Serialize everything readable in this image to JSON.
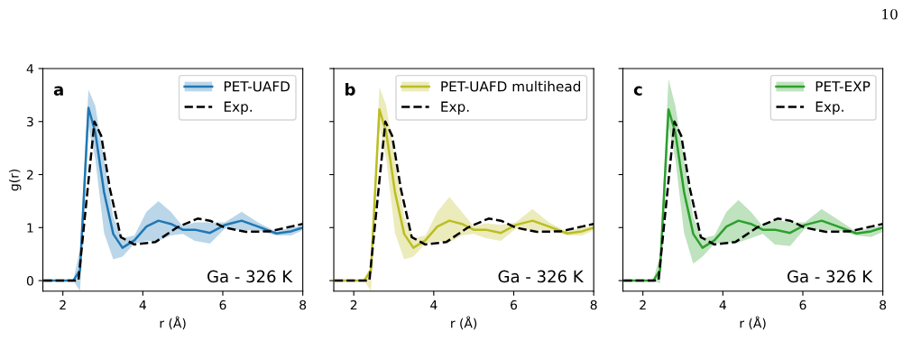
{
  "chart_data": [
    {
      "type": "line",
      "xlabel": "r (Å)",
      "ylabel": "g(r)",
      "xlim": [
        1.5,
        8
      ],
      "ylim": [
        -0.2,
        4
      ],
      "xticks": [
        2,
        4,
        6,
        8
      ],
      "yticks": [
        0,
        1,
        2,
        3,
        4
      ],
      "legend": "top right",
      "grid": false,
      "annotations": [
        "a",
        "Ga - 326 K",
        "10"
      ],
      "series": [
        {
          "name": "PET-UAFD",
          "color": "#1f77b4",
          "x": [
            1.52,
            2.26,
            2.43,
            2.64,
            2.81,
            3.03,
            3.26,
            3.49,
            3.79,
            4.09,
            4.39,
            4.7,
            5.0,
            5.3,
            5.68,
            6.05,
            6.47,
            6.88,
            7.34,
            7.71,
            8.0
          ],
          "values": [
            0,
            0,
            0.2,
            3.26,
            2.8,
            1.67,
            0.88,
            0.62,
            0.76,
            1.02,
            1.13,
            1.07,
            0.96,
            0.96,
            0.9,
            1.05,
            1.13,
            1.02,
            0.89,
            0.93,
            1.0
          ],
          "lower": [
            0,
            0,
            -0.2,
            2.9,
            2.3,
            0.9,
            0.4,
            0.45,
            0.7,
            0.75,
            0.75,
            0.85,
            0.88,
            0.75,
            0.7,
            0.98,
            0.95,
            0.95,
            0.85,
            0.85,
            0.95
          ],
          "upper": [
            0,
            0,
            0.6,
            3.6,
            3.3,
            2.3,
            1.2,
            0.8,
            0.85,
            1.3,
            1.5,
            1.3,
            1.02,
            1.1,
            1.1,
            1.1,
            1.3,
            1.1,
            0.92,
            1.0,
            1.03
          ]
        },
        {
          "name": "Exp.",
          "color": "#000000",
          "line_style": "dashed",
          "x": [
            1.52,
            2.39,
            2.79,
            2.96,
            3.18,
            3.45,
            3.79,
            4.32,
            4.85,
            5.37,
            5.68,
            6.05,
            6.58,
            7.18,
            7.71,
            8.0
          ],
          "values": [
            0,
            0,
            3.0,
            2.73,
            1.72,
            0.82,
            0.68,
            0.73,
            1.0,
            1.17,
            1.13,
            1.0,
            0.92,
            0.93,
            1.02,
            1.07
          ]
        }
      ]
    },
    {
      "type": "line",
      "xlabel": "r (Å)",
      "xlim": [
        1.5,
        8
      ],
      "ylim": [
        -0.2,
        4
      ],
      "xticks": [
        2,
        4,
        6,
        8
      ],
      "yticks": [
        0,
        1,
        2,
        3,
        4
      ],
      "tick_labels": "x",
      "legend": "top right",
      "grid": false,
      "annotations": [
        "b",
        "Ga - 326 K"
      ],
      "series": [
        {
          "name": "PET-UAFD multihead",
          "color": "#bcbd22",
          "x": [
            1.52,
            2.26,
            2.43,
            2.64,
            2.81,
            3.03,
            3.26,
            3.49,
            3.79,
            4.09,
            4.39,
            4.7,
            5.0,
            5.3,
            5.68,
            6.05,
            6.47,
            6.88,
            7.34,
            7.71,
            8.0
          ],
          "values": [
            0,
            0,
            0.2,
            3.23,
            2.8,
            1.67,
            0.88,
            0.62,
            0.76,
            1.02,
            1.13,
            1.07,
            0.96,
            0.96,
            0.9,
            1.05,
            1.13,
            1.02,
            0.89,
            0.93,
            1.0
          ],
          "lower": [
            0,
            0,
            -0.2,
            2.9,
            2.3,
            0.9,
            0.4,
            0.45,
            0.7,
            0.75,
            0.72,
            0.85,
            0.88,
            0.8,
            0.75,
            0.98,
            0.95,
            0.95,
            0.85,
            0.85,
            0.95
          ],
          "upper": [
            0,
            0,
            0.3,
            3.65,
            3.3,
            2.3,
            1.2,
            0.8,
            0.85,
            1.3,
            1.58,
            1.3,
            1.02,
            1.08,
            1.05,
            1.1,
            1.35,
            1.1,
            0.92,
            1.0,
            1.03
          ]
        },
        {
          "name": "Exp.",
          "color": "#000000",
          "line_style": "dashed",
          "x": [
            1.52,
            2.39,
            2.79,
            2.96,
            3.18,
            3.45,
            3.79,
            4.32,
            4.85,
            5.37,
            5.68,
            6.05,
            6.58,
            7.18,
            7.71,
            8.0
          ],
          "values": [
            0,
            0,
            3.0,
            2.73,
            1.72,
            0.82,
            0.68,
            0.73,
            1.0,
            1.17,
            1.13,
            1.0,
            0.92,
            0.93,
            1.02,
            1.07
          ]
        }
      ]
    },
    {
      "type": "line",
      "xlabel": "r (Å)",
      "xlim": [
        1.5,
        8
      ],
      "ylim": [
        -0.2,
        4
      ],
      "xticks": [
        2,
        4,
        6,
        8
      ],
      "yticks": [
        0,
        1,
        2,
        3,
        4
      ],
      "tick_labels": "x",
      "legend": "top right",
      "grid": false,
      "annotations": [
        "c",
        "Ga - 326 K"
      ],
      "series": [
        {
          "name": "PET-EXP",
          "color": "#2ca02c",
          "x": [
            1.52,
            2.26,
            2.43,
            2.64,
            2.81,
            3.03,
            3.26,
            3.49,
            3.79,
            4.09,
            4.39,
            4.7,
            5.0,
            5.3,
            5.68,
            6.05,
            6.47,
            6.88,
            7.34,
            7.71,
            8.0
          ],
          "values": [
            0,
            0,
            0.2,
            3.23,
            2.8,
            1.67,
            0.88,
            0.62,
            0.76,
            1.02,
            1.13,
            1.07,
            0.96,
            0.96,
            0.9,
            1.05,
            1.13,
            1.02,
            0.89,
            0.93,
            1.0
          ],
          "lower": [
            0,
            0,
            -0.05,
            2.9,
            2.3,
            0.9,
            0.32,
            0.45,
            0.7,
            0.72,
            0.72,
            0.8,
            0.88,
            0.68,
            0.65,
            0.98,
            0.95,
            0.95,
            0.85,
            0.82,
            0.92
          ],
          "upper": [
            0,
            0,
            0.5,
            3.8,
            3.3,
            2.3,
            1.2,
            0.8,
            0.85,
            1.3,
            1.52,
            1.3,
            1.02,
            1.15,
            1.1,
            1.1,
            1.35,
            1.15,
            0.92,
            1.0,
            1.03
          ]
        },
        {
          "name": "Exp.",
          "color": "#000000",
          "line_style": "dashed",
          "x": [
            1.52,
            2.39,
            2.79,
            2.96,
            3.18,
            3.45,
            3.79,
            4.32,
            4.85,
            5.37,
            5.68,
            6.05,
            6.58,
            7.18,
            7.71,
            8.0
          ],
          "values": [
            0,
            0,
            3.0,
            2.73,
            1.72,
            0.82,
            0.68,
            0.73,
            1.0,
            1.17,
            1.13,
            1.0,
            0.92,
            0.93,
            1.02,
            1.07
          ]
        }
      ]
    }
  ]
}
